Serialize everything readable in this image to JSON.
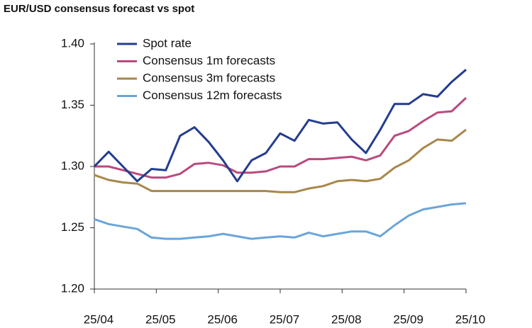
{
  "chart_data": {
    "type": "line",
    "title": "EUR/USD consensus forecast vs spot",
    "x": [
      0,
      1,
      2,
      3,
      4,
      5,
      6,
      7,
      8,
      9,
      10,
      11,
      12,
      13,
      14,
      15,
      16,
      17,
      18,
      19,
      20,
      21,
      22,
      23,
      24,
      25,
      26
    ],
    "xlim": [
      0,
      26
    ],
    "xticks": [
      {
        "value": 0,
        "label": "25/04"
      },
      {
        "value": 4.333,
        "label": "25/05"
      },
      {
        "value": 8.667,
        "label": "25/06"
      },
      {
        "value": 13,
        "label": "25/07"
      },
      {
        "value": 17.333,
        "label": "25/08"
      },
      {
        "value": 21.667,
        "label": "25/09"
      },
      {
        "value": 26,
        "label": "25/10"
      }
    ],
    "ylim": [
      1.2,
      1.4
    ],
    "yticks": [
      {
        "value": 1.2,
        "label": "1.20"
      },
      1.25,
      {
        "value": 1.3,
        "label": "1.30"
      },
      1.35,
      {
        "value": 1.4,
        "label": "1.40"
      }
    ],
    "grid": false,
    "legend": "upper left",
    "series": [
      {
        "name": "Spot rate",
        "color": "#233d8f",
        "values": [
          1.3,
          1.312,
          1.3,
          1.288,
          1.298,
          1.297,
          1.325,
          1.332,
          1.32,
          1.305,
          1.288,
          1.305,
          1.311,
          1.327,
          1.321,
          1.338,
          1.335,
          1.336,
          1.322,
          1.311,
          1.33,
          1.351,
          1.351,
          1.359,
          1.357,
          1.369,
          1.379
        ]
      },
      {
        "name": "Consensus 1m forecasts",
        "color": "#b94a7e",
        "values": [
          1.3,
          1.3,
          1.297,
          1.294,
          1.291,
          1.291,
          1.294,
          1.302,
          1.303,
          1.301,
          1.295,
          1.295,
          1.296,
          1.3,
          1.3,
          1.306,
          1.306,
          1.307,
          1.308,
          1.305,
          1.309,
          1.325,
          1.329,
          1.337,
          1.344,
          1.345,
          1.356
        ]
      },
      {
        "name": "Consensus 3m forecasts",
        "color": "#a8874a",
        "values": [
          1.293,
          1.289,
          1.287,
          1.286,
          1.28,
          1.28,
          1.28,
          1.28,
          1.28,
          1.28,
          1.28,
          1.28,
          1.28,
          1.279,
          1.279,
          1.282,
          1.284,
          1.288,
          1.289,
          1.288,
          1.29,
          1.299,
          1.305,
          1.315,
          1.322,
          1.321,
          1.33
        ]
      },
      {
        "name": "Consensus 12m forecasts",
        "color": "#6aa5d9",
        "values": [
          1.257,
          1.253,
          1.251,
          1.249,
          1.242,
          1.241,
          1.241,
          1.242,
          1.243,
          1.245,
          1.243,
          1.241,
          1.242,
          1.243,
          1.242,
          1.246,
          1.243,
          1.245,
          1.247,
          1.247,
          1.243,
          1.252,
          1.26,
          1.265,
          1.267,
          1.269,
          1.27
        ]
      }
    ]
  }
}
